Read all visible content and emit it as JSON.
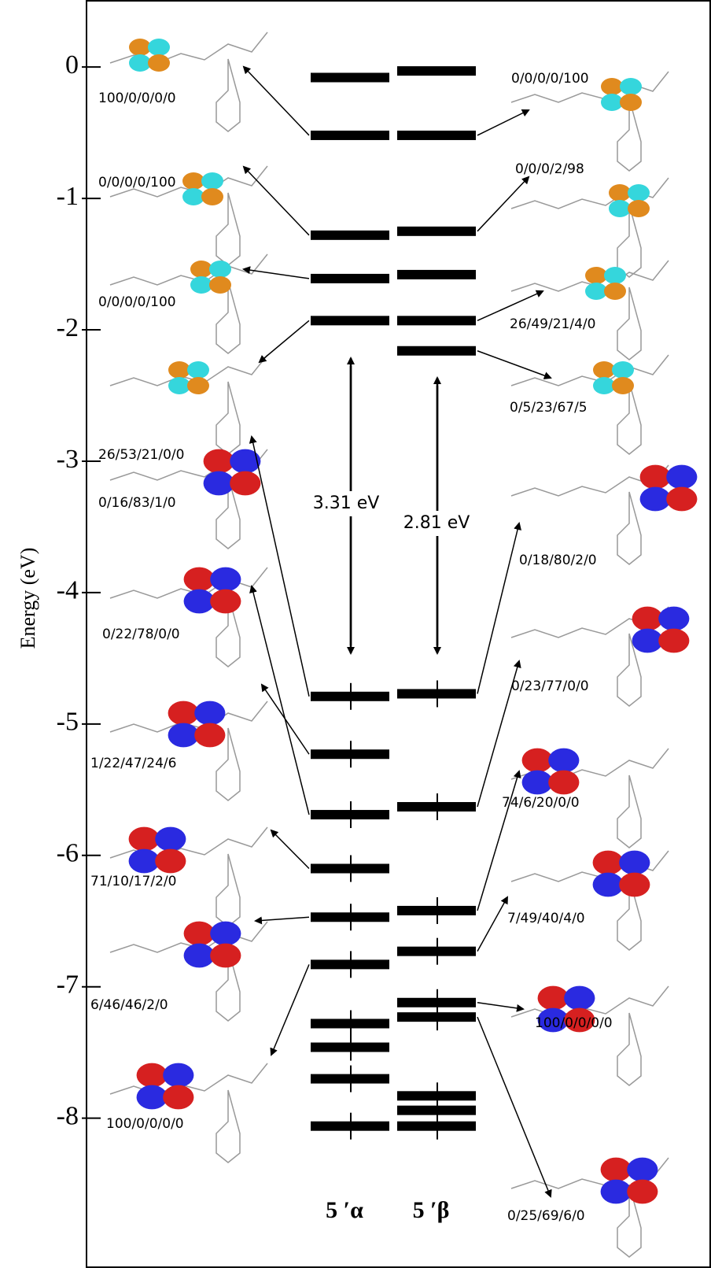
{
  "chart_data": {
    "type": "energy-levels",
    "ylabel": "Energy (eV)",
    "ylim": [
      -9.14,
      0.51
    ],
    "yticks": [
      0,
      -1,
      -2,
      -3,
      -4,
      -5,
      -6,
      -7,
      -8
    ],
    "series": [
      {
        "name": "5 ′α",
        "color": "#000000",
        "values": [
          -0.08,
          -0.52,
          -1.28,
          -1.61,
          -1.93,
          -4.79,
          -5.23,
          -5.69,
          -6.1,
          -6.47,
          -6.83,
          -7.28,
          -7.46,
          -7.7,
          -8.06
        ],
        "occupied": [
          false,
          false,
          false,
          false,
          false,
          true,
          true,
          true,
          true,
          true,
          true,
          true,
          true,
          true,
          true
        ]
      },
      {
        "name": "5 ′β",
        "color": "#000000",
        "values": [
          -0.03,
          -0.52,
          -1.25,
          -1.58,
          -1.93,
          -2.16,
          -4.77,
          -5.63,
          -6.42,
          -6.73,
          -7.12,
          -7.23,
          -7.83,
          -7.94,
          -8.06
        ],
        "occupied": [
          false,
          false,
          false,
          false,
          false,
          false,
          true,
          true,
          true,
          true,
          true,
          true,
          true,
          true,
          true
        ]
      }
    ],
    "gaps": {
      "values": [
        3.31,
        2.81
      ],
      "value_labels": [
        "3.31 eV",
        "2.81 eV"
      ]
    },
    "compositions": {
      "left": [
        "100/0/0/0/0",
        "0/0/0/0/100",
        "0/0/0/0/100",
        "26/53/21/0/0",
        "0/16/83/1/0",
        "0/22/78/0/0",
        "1/22/47/24/6",
        "71/10/17/2/0",
        "6/46/46/2/0",
        "100/0/0/0/0"
      ],
      "right": [
        "0/0/0/0/100",
        "0/0/0/2/98",
        "26/49/21/4/0",
        "0/5/23/67/5",
        "0/18/80/2/0",
        "0/23/77/0/0",
        "74/6/20/0/0",
        "7/49/40/4/0",
        "100/0/0/0/0",
        "0/25/69/6/0"
      ]
    }
  }
}
